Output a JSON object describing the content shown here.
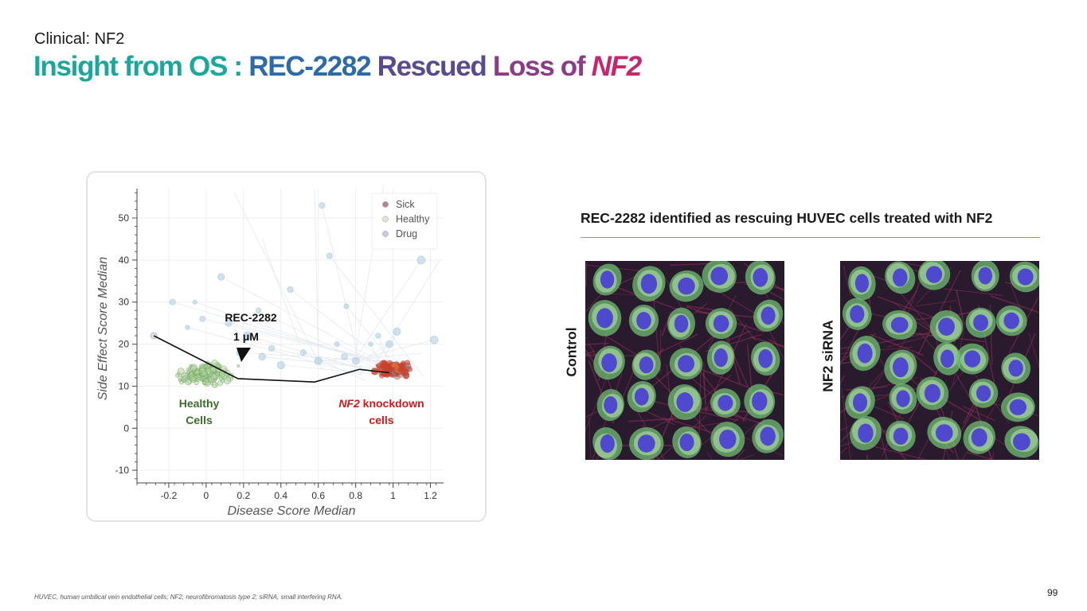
{
  "header": {
    "eyebrow": "Clinical: NF2",
    "title_part1": "Insight from OS : ",
    "title_part2": "REC-2282 ",
    "title_part3": "Rescued ",
    "title_part4": "Loss of ",
    "title_part5": "NF2"
  },
  "chart_data": {
    "type": "scatter",
    "xlabel": "Disease Score Median",
    "ylabel": "Side Effect Score Median",
    "xlim": [
      -0.37,
      1.27
    ],
    "ylim": [
      -13,
      57
    ],
    "x_ticks": [
      -0.2,
      0,
      0.2,
      0.4,
      0.6,
      0.8,
      1,
      1.2
    ],
    "x_tick_labels": [
      "-0.2",
      "0",
      "0.2",
      "0.4",
      "0.6",
      "0.8",
      "1",
      "1.2"
    ],
    "y_ticks": [
      -10,
      0,
      10,
      20,
      30,
      40,
      50
    ],
    "y_tick_labels": [
      "-10",
      "0",
      "10",
      "20",
      "30",
      "40",
      "50"
    ],
    "grid": true,
    "legend_position": "top-right",
    "legend": [
      {
        "label": "Sick",
        "color": "#b98585"
      },
      {
        "label": "Healthy",
        "color": "#dbe8d5"
      },
      {
        "label": "Drug",
        "color": "#c5c9e1"
      }
    ],
    "series": [
      {
        "name": "Sick",
        "color": "#c0392b",
        "cluster": {
          "x_center": 1.0,
          "x_spread": 0.11,
          "y_center": 14,
          "y_spread": 2.2,
          "count": 170
        }
      },
      {
        "name": "Healthy",
        "color": "#5a9a4b",
        "cluster": {
          "x_center": 0.0,
          "x_spread": 0.17,
          "y_center": 13,
          "y_spread": 3.2,
          "count": 160
        }
      },
      {
        "name": "Drug",
        "color": "#9cc0da",
        "points": [
          {
            "x": -0.18,
            "y": 30
          },
          {
            "x": -0.1,
            "y": 24
          },
          {
            "x": -0.06,
            "y": 30
          },
          {
            "x": -0.02,
            "y": 26
          },
          {
            "x": 0.08,
            "y": 36
          },
          {
            "x": 0.12,
            "y": 25
          },
          {
            "x": 0.22,
            "y": 22
          },
          {
            "x": 0.28,
            "y": 28
          },
          {
            "x": 0.35,
            "y": 19
          },
          {
            "x": 0.45,
            "y": 33
          },
          {
            "x": 0.52,
            "y": 18
          },
          {
            "x": 0.6,
            "y": 16
          },
          {
            "x": 0.62,
            "y": 53
          },
          {
            "x": 0.66,
            "y": 41
          },
          {
            "x": 0.7,
            "y": 20
          },
          {
            "x": 0.75,
            "y": 29
          },
          {
            "x": 0.8,
            "y": 16
          },
          {
            "x": 0.88,
            "y": 20
          },
          {
            "x": 0.92,
            "y": 22
          },
          {
            "x": 0.98,
            "y": 20
          },
          {
            "x": 1.02,
            "y": 23
          },
          {
            "x": 1.15,
            "y": 40
          },
          {
            "x": 1.22,
            "y": 21
          },
          {
            "x": 0.4,
            "y": 15
          },
          {
            "x": 0.3,
            "y": 17
          },
          {
            "x": 0.18,
            "y": 18
          },
          {
            "x": 0.74,
            "y": 17
          }
        ]
      }
    ],
    "trajectory": [
      {
        "x": -0.28,
        "y": 22
      },
      {
        "x": 0.17,
        "y": 11.8
      },
      {
        "x": 0.58,
        "y": 11
      },
      {
        "x": 0.82,
        "y": 14
      },
      {
        "x": 0.98,
        "y": 13.2
      }
    ],
    "annotations": [
      {
        "id": "drug",
        "line1": "REC-2282",
        "line2": "1 μM",
        "x": 0.2,
        "y": 21
      },
      {
        "id": "healthy",
        "line1": "Healthy",
        "line2": "Cells",
        "x": -0.03,
        "y": 2
      },
      {
        "id": "knockdown",
        "line1_italic": "NF2",
        "line1_rest": " knockdown",
        "line2": "cells",
        "x": 0.95,
        "y": 2
      }
    ]
  },
  "images": {
    "caption": "REC-2282 identified as rescuing HUVEC cells treated with NF2",
    "control_label": "Control",
    "nf2_label": "NF2 siRNA"
  },
  "footer": {
    "footnote": "HUVEC, human umbilical vein endothelial cells; NF2, neurofibromatosis type 2; siRNA, small interfering RNA.",
    "page_number": "99"
  },
  "colors": {
    "teal": "#1aa79c",
    "blue": "#2f6aa8",
    "purple": "#5a4a8f",
    "magenta": "#c8266a",
    "healthy_label": "#3b6e2a",
    "sick_label": "#d01818"
  }
}
